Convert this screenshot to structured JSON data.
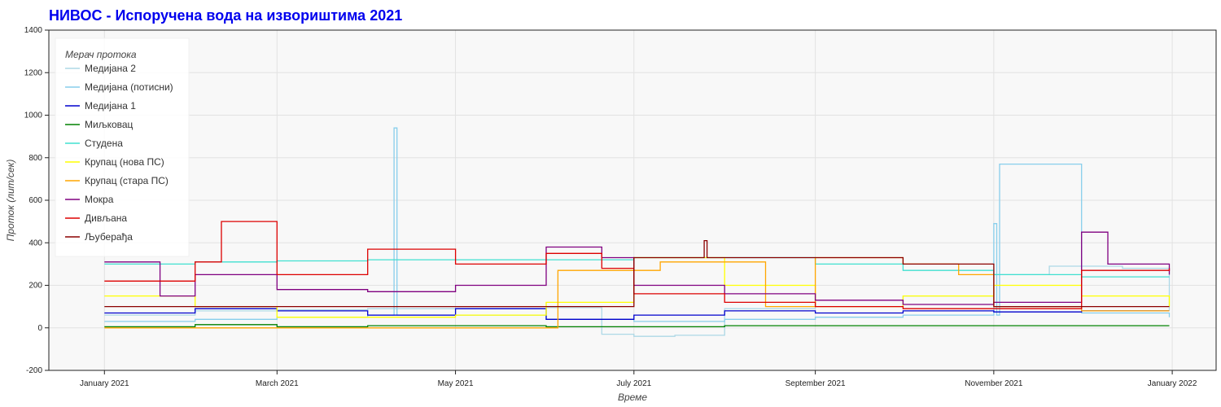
{
  "chart_data": {
    "type": "line",
    "title": "НИВОС - Испоручена вода на извориштима 2021",
    "xlabel": "Време",
    "ylabel": "Проток (лит/сек)",
    "x_range": [
      "2020-12-13",
      "2022-01-16"
    ],
    "ylim": [
      -200,
      1400
    ],
    "y_ticks": [
      -200,
      0,
      200,
      400,
      600,
      800,
      1000,
      1200,
      1400
    ],
    "x_ticks": [
      {
        "date": "2021-01-01",
        "label": "January 2021"
      },
      {
        "date": "2021-03-01",
        "label": "March 2021"
      },
      {
        "date": "2021-05-01",
        "label": "May 2021"
      },
      {
        "date": "2021-07-01",
        "label": "July 2021"
      },
      {
        "date": "2021-09-01",
        "label": "September 2021"
      },
      {
        "date": "2021-11-01",
        "label": "November 2021"
      },
      {
        "date": "2022-01-01",
        "label": "January 2022"
      }
    ],
    "grid": true,
    "legend": {
      "title": "Мерач протока",
      "position": "top-left"
    },
    "series": [
      {
        "name": "Медијана 2",
        "color": "#add8e6",
        "x": [
          "2021-01-01",
          "2021-02-01",
          "2021-03-01",
          "2021-04-01",
          "2021-05-01",
          "2021-06-01",
          "2021-06-20",
          "2021-07-01",
          "2021-07-15",
          "2021-08-01",
          "2021-09-01",
          "2021-10-01",
          "2021-11-01",
          "2021-11-20",
          "2021-12-15",
          "2021-12-31"
        ],
        "values": [
          60,
          80,
          85,
          90,
          90,
          95,
          -30,
          -40,
          -35,
          90,
          100,
          150,
          250,
          290,
          280,
          80
        ]
      },
      {
        "name": "Медијана (потисни)",
        "color": "#87ceeb",
        "x": [
          "2021-01-01",
          "2021-02-01",
          "2021-03-01",
          "2021-04-01",
          "2021-04-10",
          "2021-04-11",
          "2021-05-01",
          "2021-06-01",
          "2021-07-01",
          "2021-08-01",
          "2021-09-01",
          "2021-10-01",
          "2021-11-01",
          "2021-11-02",
          "2021-11-03",
          "2021-12-01",
          "2021-12-31"
        ],
        "values": [
          30,
          40,
          50,
          60,
          940,
          60,
          60,
          40,
          30,
          40,
          50,
          60,
          490,
          60,
          770,
          70,
          50
        ]
      },
      {
        "name": "Медијана 1",
        "color": "#0000cd",
        "x": [
          "2021-01-01",
          "2021-02-01",
          "2021-03-01",
          "2021-04-01",
          "2021-05-01",
          "2021-06-01",
          "2021-07-01",
          "2021-08-01",
          "2021-09-01",
          "2021-10-01",
          "2021-11-01",
          "2021-12-01",
          "2021-12-31"
        ],
        "values": [
          70,
          90,
          80,
          60,
          90,
          40,
          60,
          80,
          70,
          80,
          75,
          80,
          80
        ]
      },
      {
        "name": "Миљковац",
        "color": "#008000",
        "x": [
          "2021-01-01",
          "2021-02-01",
          "2021-03-01",
          "2021-04-01",
          "2021-05-01",
          "2021-06-01",
          "2021-07-01",
          "2021-08-01",
          "2021-09-01",
          "2021-10-01",
          "2021-11-01",
          "2021-12-01",
          "2021-12-31"
        ],
        "values": [
          5,
          15,
          5,
          10,
          10,
          5,
          5,
          10,
          10,
          10,
          10,
          10,
          10
        ]
      },
      {
        "name": "Студена",
        "color": "#40e0d0",
        "x": [
          "2021-01-01",
          "2021-02-01",
          "2021-03-01",
          "2021-04-01",
          "2021-05-01",
          "2021-06-01",
          "2021-07-01",
          "2021-08-01",
          "2021-09-01",
          "2021-10-01",
          "2021-11-01",
          "2021-12-01",
          "2021-12-31"
        ],
        "values": [
          300,
          310,
          315,
          320,
          320,
          320,
          330,
          330,
          300,
          270,
          250,
          240,
          240
        ]
      },
      {
        "name": "Крупац (нова ПС)",
        "color": "#ffff00",
        "x": [
          "2021-01-01",
          "2021-02-01",
          "2021-03-01",
          "2021-04-01",
          "2021-05-01",
          "2021-06-01",
          "2021-07-01",
          "2021-08-01",
          "2021-09-01",
          "2021-10-01",
          "2021-11-01",
          "2021-12-01",
          "2021-12-31"
        ],
        "values": [
          150,
          100,
          50,
          50,
          60,
          120,
          330,
          200,
          100,
          150,
          200,
          150,
          100
        ]
      },
      {
        "name": "Крупац (стара ПС)",
        "color": "#ffa500",
        "x": [
          "2021-01-01",
          "2021-03-01",
          "2021-05-01",
          "2021-06-05",
          "2021-06-25",
          "2021-07-10",
          "2021-08-15",
          "2021-09-01",
          "2021-10-01",
          "2021-10-20",
          "2021-11-01",
          "2021-12-01",
          "2021-12-31"
        ],
        "values": [
          0,
          0,
          0,
          270,
          270,
          310,
          100,
          330,
          300,
          250,
          100,
          80,
          80
        ]
      },
      {
        "name": "Мокра",
        "color": "#800080",
        "x": [
          "2021-01-01",
          "2021-01-20",
          "2021-02-01",
          "2021-03-01",
          "2021-04-01",
          "2021-05-01",
          "2021-06-01",
          "2021-06-20",
          "2021-07-01",
          "2021-08-01",
          "2021-09-01",
          "2021-10-01",
          "2021-11-01",
          "2021-12-01",
          "2021-12-10",
          "2021-12-31"
        ],
        "values": [
          310,
          150,
          250,
          180,
          170,
          200,
          380,
          330,
          200,
          160,
          130,
          110,
          120,
          450,
          300,
          250
        ]
      },
      {
        "name": "Дивљана",
        "color": "#dd0000",
        "x": [
          "2021-01-01",
          "2021-02-01",
          "2021-02-10",
          "2021-03-01",
          "2021-04-01",
          "2021-05-01",
          "2021-06-01",
          "2021-06-20",
          "2021-07-01",
          "2021-08-01",
          "2021-09-01",
          "2021-10-01",
          "2021-11-01",
          "2021-12-01",
          "2021-12-31"
        ],
        "values": [
          220,
          310,
          500,
          250,
          370,
          300,
          350,
          280,
          160,
          120,
          100,
          90,
          90,
          270,
          280
        ]
      },
      {
        "name": "Љуберађа",
        "color": "#8b0000",
        "x": [
          "2021-01-01",
          "2021-03-01",
          "2021-05-01",
          "2021-06-01",
          "2021-07-01",
          "2021-07-25",
          "2021-07-26",
          "2021-08-01",
          "2021-09-01",
          "2021-10-01",
          "2021-11-01",
          "2021-12-01",
          "2021-12-31"
        ],
        "values": [
          100,
          100,
          100,
          100,
          330,
          410,
          330,
          330,
          330,
          300,
          100,
          100,
          100
        ]
      }
    ]
  }
}
